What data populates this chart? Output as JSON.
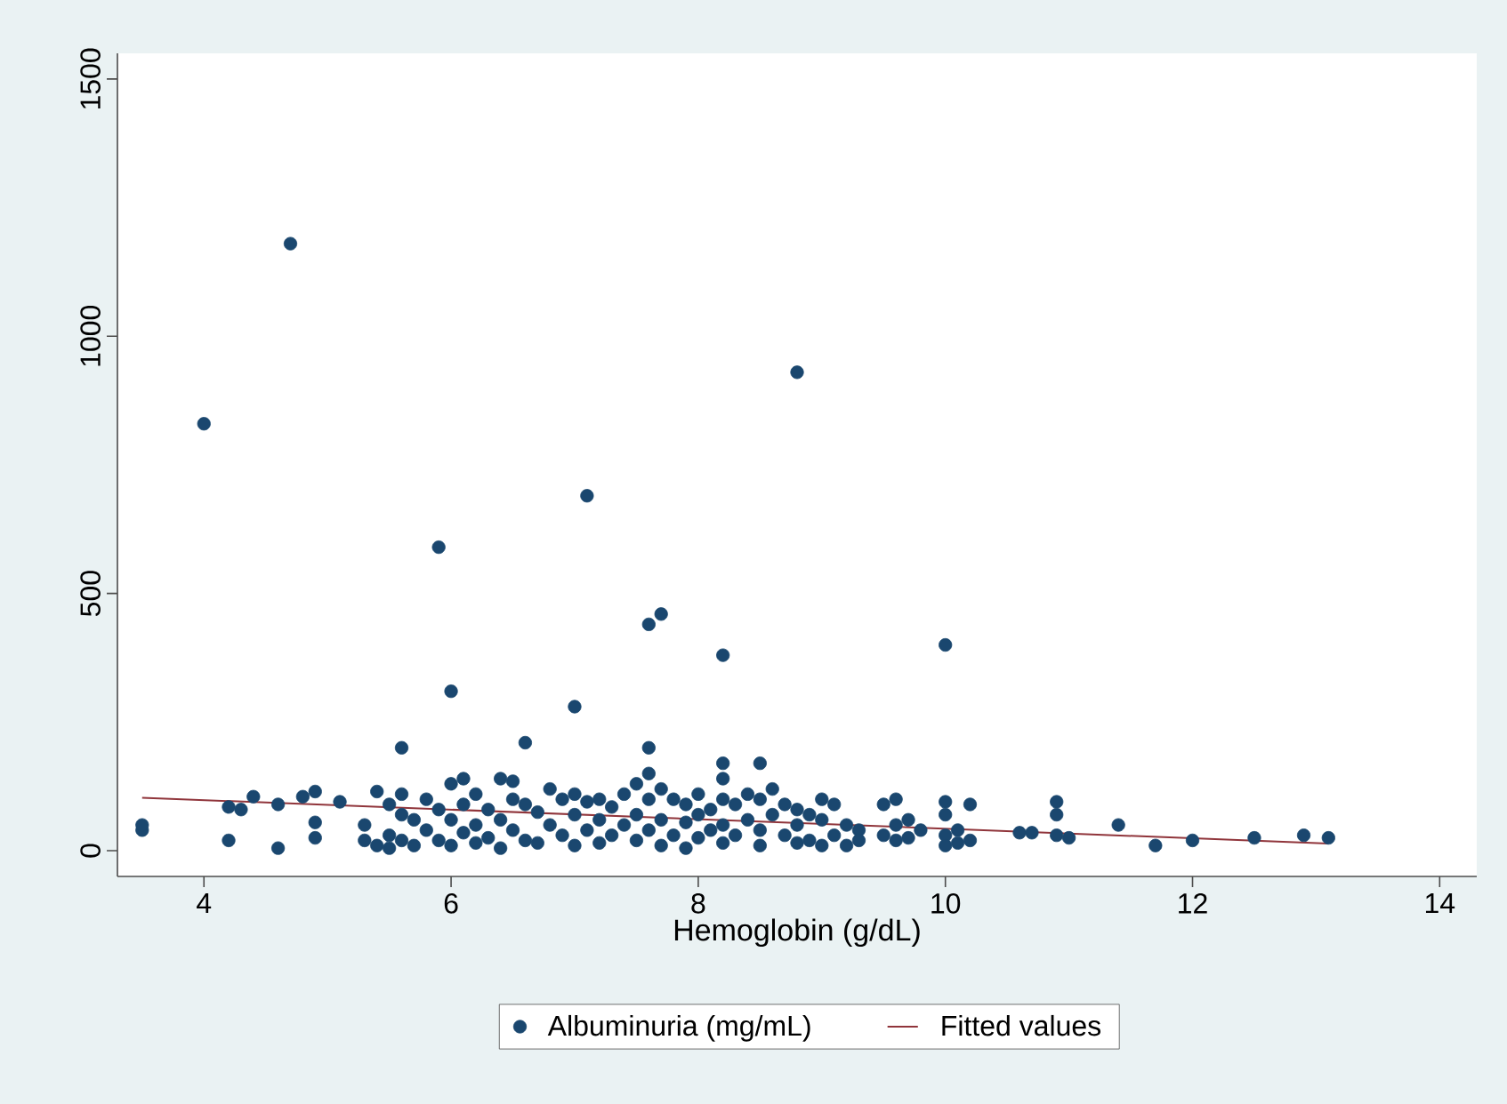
{
  "chart_data": {
    "type": "scatter",
    "xlabel": "Hemoglobin (g/dL)",
    "xlim": [
      3.3,
      14.3
    ],
    "ylim": [
      -50,
      1550
    ],
    "xticks": [
      4,
      6,
      8,
      10,
      12,
      14
    ],
    "yticks": [
      0,
      500,
      1000,
      1500
    ],
    "legend": "bottom",
    "grid": false,
    "series": [
      {
        "name": "Albuminuria (mg/mL)",
        "marker": "circle",
        "color": "#1a476f",
        "x": [
          4.0,
          4.7,
          8.8,
          7.1,
          5.9,
          7.6,
          7.7,
          8.2,
          10.0,
          6.0,
          7.0,
          5.6,
          6.6,
          7.6,
          8.2,
          8.5,
          3.5,
          3.5,
          4.2,
          4.2,
          4.3,
          4.4,
          4.6,
          4.6,
          4.8,
          4.9,
          4.9,
          4.9,
          5.1,
          5.3,
          5.3,
          5.4,
          5.4,
          5.5,
          5.5,
          5.5,
          5.6,
          5.6,
          5.6,
          5.7,
          5.7,
          5.8,
          5.8,
          5.9,
          5.9,
          6.0,
          6.0,
          6.0,
          6.1,
          6.1,
          6.1,
          6.2,
          6.2,
          6.2,
          6.3,
          6.3,
          6.4,
          6.4,
          6.4,
          6.5,
          6.5,
          6.5,
          6.6,
          6.6,
          6.7,
          6.7,
          6.8,
          6.8,
          6.9,
          6.9,
          7.0,
          7.0,
          7.0,
          7.1,
          7.1,
          7.2,
          7.2,
          7.2,
          7.3,
          7.3,
          7.4,
          7.4,
          7.5,
          7.5,
          7.5,
          7.6,
          7.6,
          7.6,
          7.7,
          7.7,
          7.7,
          7.8,
          7.8,
          7.9,
          7.9,
          7.9,
          8.0,
          8.0,
          8.0,
          8.1,
          8.1,
          8.2,
          8.2,
          8.2,
          8.2,
          8.3,
          8.3,
          8.4,
          8.4,
          8.5,
          8.5,
          8.5,
          8.6,
          8.6,
          8.7,
          8.7,
          8.8,
          8.8,
          8.8,
          8.9,
          8.9,
          9.0,
          9.0,
          9.0,
          9.1,
          9.1,
          9.2,
          9.2,
          9.3,
          9.3,
          9.5,
          9.5,
          9.6,
          9.6,
          9.6,
          9.7,
          9.7,
          9.8,
          10.0,
          10.0,
          10.0,
          10.0,
          10.1,
          10.1,
          10.2,
          10.2,
          10.6,
          10.7,
          10.9,
          10.9,
          10.9,
          11.0,
          11.4,
          11.7,
          12.0,
          12.5,
          12.9,
          13.1
        ],
        "values": [
          830,
          1180,
          930,
          690,
          590,
          440,
          460,
          380,
          400,
          310,
          280,
          200,
          210,
          200,
          170,
          170,
          40,
          50,
          20,
          85,
          80,
          105,
          5,
          90,
          105,
          115,
          55,
          25,
          95,
          20,
          50,
          115,
          10,
          90,
          30,
          5,
          110,
          70,
          20,
          60,
          10,
          100,
          40,
          80,
          20,
          130,
          60,
          10,
          140,
          90,
          35,
          110,
          50,
          15,
          80,
          25,
          140,
          60,
          5,
          135,
          100,
          40,
          90,
          20,
          75,
          15,
          120,
          50,
          100,
          30,
          110,
          70,
          10,
          95,
          40,
          100,
          60,
          15,
          85,
          30,
          110,
          50,
          130,
          70,
          20,
          150,
          100,
          40,
          120,
          60,
          10,
          100,
          30,
          90,
          55,
          5,
          110,
          70,
          25,
          80,
          40,
          140,
          100,
          50,
          15,
          90,
          30,
          110,
          60,
          100,
          40,
          10,
          120,
          70,
          90,
          30,
          80,
          50,
          15,
          70,
          20,
          100,
          60,
          10,
          90,
          30,
          50,
          10,
          40,
          20,
          90,
          30,
          100,
          50,
          20,
          60,
          25,
          40,
          95,
          70,
          30,
          10,
          40,
          15,
          90,
          20,
          35,
          35,
          95,
          70,
          30,
          25,
          50,
          10,
          20,
          25,
          30,
          25
        ]
      },
      {
        "name": "Fitted values",
        "type": "line",
        "color": "#90353b",
        "line_style": "solid",
        "x": [
          3.5,
          13.1
        ],
        "values": [
          103,
          14
        ]
      }
    ]
  }
}
